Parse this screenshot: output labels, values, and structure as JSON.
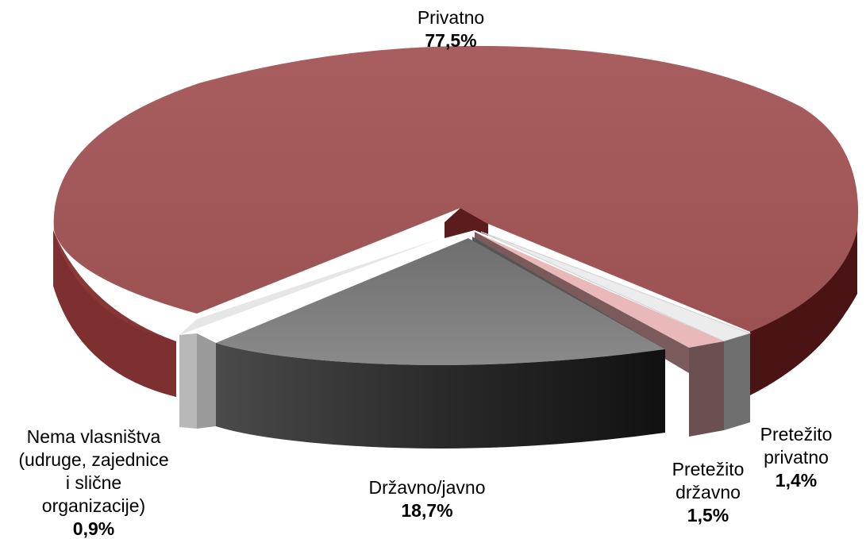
{
  "chart_data": {
    "type": "pie",
    "title": "",
    "slices": [
      {
        "label": [
          "Privatno"
        ],
        "value_label": "77,5%",
        "value": 77.5,
        "color": "#a45a5a"
      },
      {
        "label": [
          "Pretežito",
          "privatno"
        ],
        "value_label": "1,4%",
        "value": 1.4,
        "color": "#e8e8e8"
      },
      {
        "label": [
          "Pretežito",
          "državno"
        ],
        "value_label": "1,5%",
        "value": 1.5,
        "color": "#e8b7b7"
      },
      {
        "label": [
          "Državno/javno"
        ],
        "value_label": "18,7%",
        "value": 18.7,
        "color": "#7a7a7a"
      },
      {
        "label": [
          "Nema vlasništva",
          "(udruge, zajednice",
          "i slične",
          "organizacije)"
        ],
        "value_label": "0,9%",
        "value": 0.9,
        "color": "#d0d0d0"
      }
    ]
  }
}
